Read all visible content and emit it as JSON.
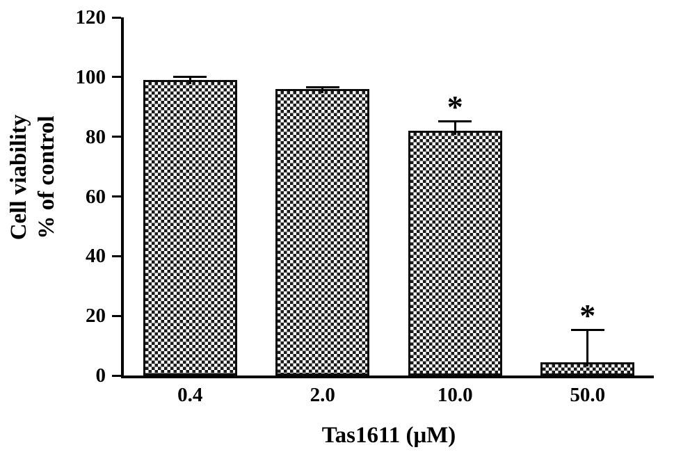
{
  "figure": {
    "background": "#ffffff"
  },
  "chart_data": {
    "type": "bar",
    "title": "",
    "categories": [
      "0.4",
      "2.0",
      "10.0",
      "50.0"
    ],
    "values": [
      99,
      96,
      82,
      4.5
    ],
    "errors_plus": [
      1.5,
      1,
      3.5,
      11
    ],
    "annotations": [
      "",
      "",
      "*",
      "*"
    ],
    "xlabel": "Tas1611 (μM)",
    "ylabel": "Cell viability % of control",
    "ylabel_lines": [
      "Cell viability",
      "% of control"
    ],
    "ylim": [
      0,
      120
    ],
    "yticks": [
      0,
      20,
      40,
      60,
      80,
      100,
      120
    ],
    "bar_fill": "checkerboard-pattern",
    "bar_color": "#1a1a1a",
    "axis_color": "#000000",
    "grid": false,
    "legend": "none"
  }
}
